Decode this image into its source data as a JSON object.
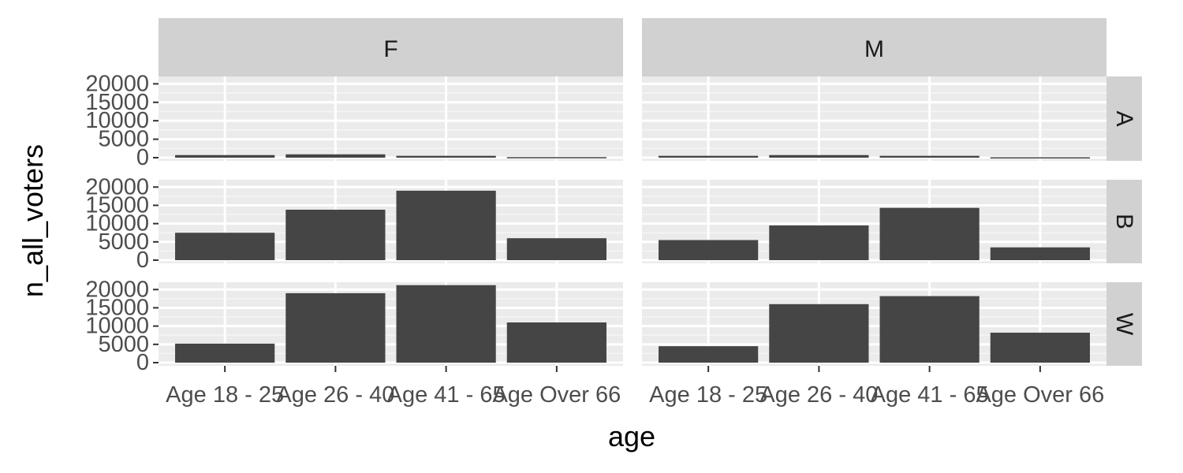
{
  "chart_data": {
    "type": "bar",
    "facet_cols": [
      "F",
      "M"
    ],
    "facet_rows": [
      "A",
      "B",
      "W"
    ],
    "categories": [
      "Age 18 - 25",
      "Age 26 - 40",
      "Age 41 - 65",
      "Age Over 66"
    ],
    "xlabel": "age",
    "ylabel": "n_all_voters",
    "ylim": [
      0,
      22000
    ],
    "yticks": [
      0,
      5000,
      10000,
      15000,
      20000
    ],
    "panels": [
      {
        "col": "F",
        "row": "A",
        "values": [
          700,
          900,
          500,
          150
        ]
      },
      {
        "col": "M",
        "row": "A",
        "values": [
          500,
          700,
          500,
          100
        ]
      },
      {
        "col": "F",
        "row": "B",
        "values": [
          7500,
          13800,
          19000,
          6000
        ]
      },
      {
        "col": "M",
        "row": "B",
        "values": [
          5500,
          9500,
          14300,
          3500
        ]
      },
      {
        "col": "F",
        "row": "W",
        "values": [
          5200,
          19000,
          21200,
          11000
        ]
      },
      {
        "col": "M",
        "row": "W",
        "values": [
          4500,
          16000,
          18200,
          8200
        ]
      }
    ],
    "grid": true,
    "legend": "none",
    "colors": {
      "bar": "#454545",
      "panel_bg": "#ebebeb",
      "grid_major": "#ffffff",
      "grid_minor": "#f5f5f5",
      "strip_bg": "#d1d1d1"
    }
  }
}
